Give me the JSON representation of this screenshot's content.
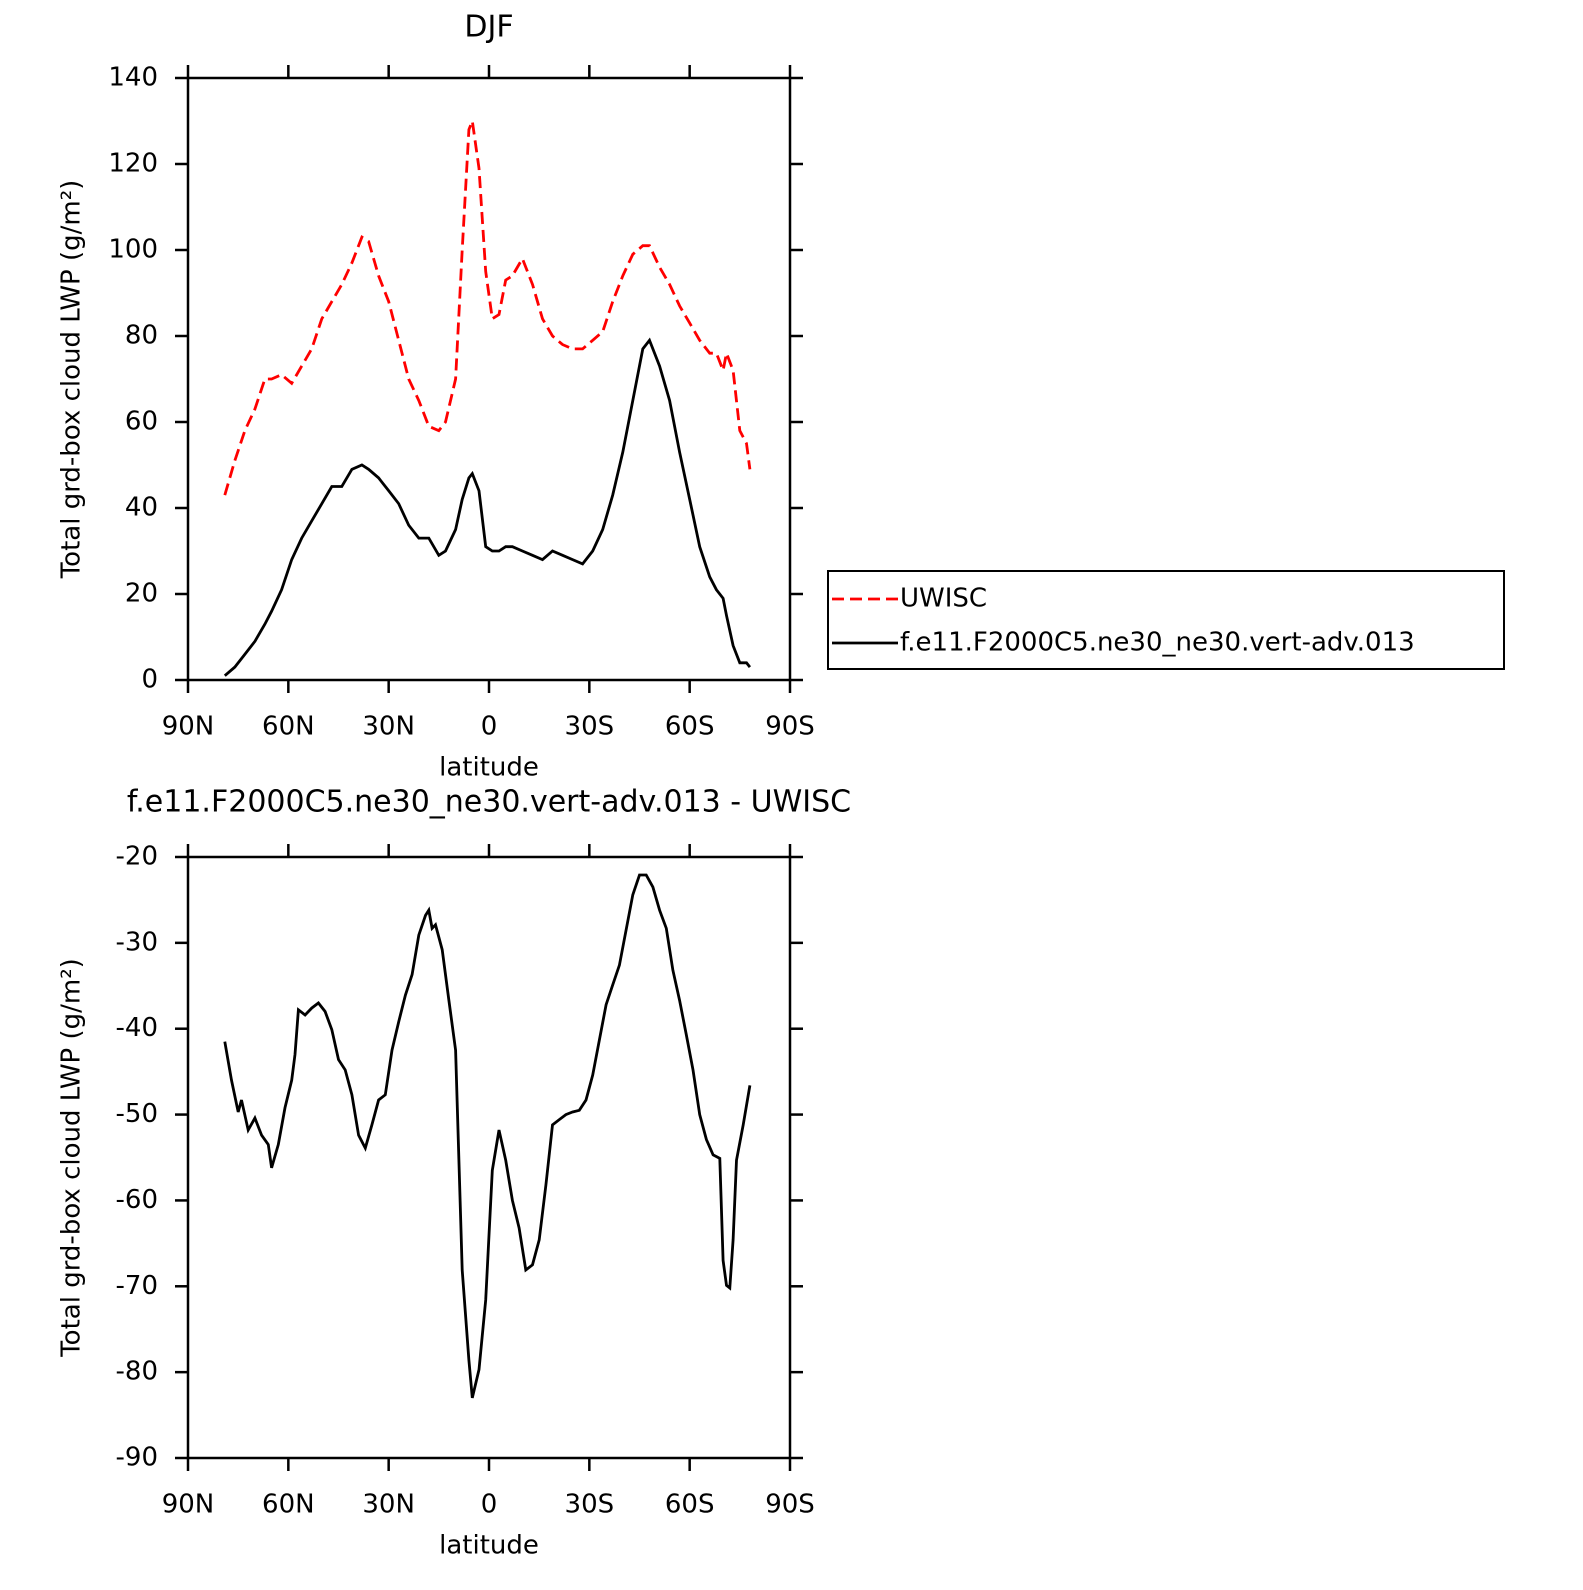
{
  "chart_data": [
    {
      "type": "line",
      "title": "DJF",
      "xlabel": "latitude",
      "ylabel": "Total grd-box cloud LWP (g/m²)",
      "x": [
        79,
        76,
        73,
        70,
        67,
        65,
        62,
        59,
        56,
        53,
        50,
        47,
        44,
        41,
        38,
        36,
        33,
        30,
        27,
        24,
        21,
        18,
        15,
        13,
        10,
        8,
        6,
        5,
        3,
        1,
        -1,
        -3,
        -5,
        -7,
        -10,
        -13,
        -16,
        -19,
        -22,
        -25,
        -28,
        -31,
        -34,
        -37,
        -40,
        -43,
        -46,
        -48,
        -51,
        -54,
        -57,
        -60,
        -63,
        -66,
        -68,
        -70,
        -71,
        -73,
        -75,
        -77,
        -78
      ],
      "series": [
        {
          "name": "UWISC",
          "color": "#ff0000",
          "linestyle": "dashed",
          "values": [
            43,
            51,
            58,
            63,
            70,
            70,
            71,
            69,
            73,
            77,
            84,
            88,
            92,
            97,
            103,
            102,
            94,
            88,
            79,
            70,
            65,
            59,
            58,
            60,
            70,
            100,
            128,
            130,
            119,
            95,
            84,
            85,
            93,
            94,
            98,
            92,
            84,
            80,
            78,
            77,
            77,
            79,
            81,
            88,
            94,
            99,
            101,
            101,
            96,
            92,
            87,
            83,
            79,
            76,
            76,
            72,
            76,
            72,
            58,
            55,
            49
          ]
        },
        {
          "name": "f.e11.F2000C5.ne30_ne30.vert-adv.013",
          "color": "#000000",
          "linestyle": "solid",
          "values": [
            1,
            3,
            6,
            9,
            13,
            16,
            21,
            28,
            33,
            37,
            41,
            45,
            45,
            49,
            50,
            49,
            47,
            44,
            41,
            36,
            33,
            33,
            29,
            30,
            35,
            42,
            47,
            48,
            44,
            31,
            30,
            30,
            31,
            31,
            30,
            29,
            28,
            30,
            29,
            28,
            27,
            30,
            35,
            43,
            53,
            65,
            77,
            79,
            73,
            65,
            53,
            42,
            31,
            24,
            21,
            19,
            15,
            8,
            4,
            4,
            3
          ]
        }
      ],
      "xlim": [
        90,
        -90
      ],
      "xticks": [
        {
          "value": 90,
          "label": "90N"
        },
        {
          "value": 60,
          "label": "60N"
        },
        {
          "value": 30,
          "label": "30N"
        },
        0,
        {
          "value": -30,
          "label": "30S"
        },
        {
          "value": -60,
          "label": "60S"
        },
        {
          "value": -90,
          "label": "90S"
        }
      ],
      "ylim": [
        0,
        140
      ],
      "yticks": [
        0,
        20,
        40,
        60,
        80,
        100,
        120,
        140
      ],
      "legend": "right"
    },
    {
      "type": "line",
      "title": "f.e11.F2000C5.ne30_ne30.vert-adv.013 - UWISC",
      "xlabel": "latitude",
      "ylabel": "Total grd-box cloud LWP (g/m²)",
      "x": [
        79,
        77,
        75,
        74,
        72,
        70,
        68,
        66,
        65,
        63,
        61,
        59,
        58,
        57,
        55,
        53,
        51,
        49,
        47,
        45,
        43,
        41,
        39,
        37,
        35,
        33,
        31,
        29,
        27,
        25,
        23,
        21,
        19,
        18,
        17,
        16,
        14,
        12,
        10,
        8,
        6,
        5,
        3,
        1,
        -1,
        -3,
        -5,
        -7,
        -9,
        -11,
        -13,
        -15,
        -17,
        -19,
        -21,
        -23,
        -25,
        -27,
        -29,
        -31,
        -33,
        -35,
        -37,
        -39,
        -41,
        -43,
        -45,
        -47,
        -49,
        -51,
        -53,
        -55,
        -57,
        -59,
        -61,
        -63,
        -65,
        -67,
        -69,
        -70,
        -71,
        -72,
        -73,
        -74,
        -76,
        -78
      ],
      "series": [
        {
          "name": "f.e11.F2000C5.ne30_ne30.vert-adv.013 - UWISC",
          "color": "#000000",
          "linestyle": "solid",
          "values": [
            -41.5,
            -46,
            -49.7,
            -48.3,
            -51.8,
            -50.4,
            -52.4,
            -53.5,
            -56.2,
            -53.5,
            -49.2,
            -46,
            -43,
            -37.8,
            -38.4,
            -37.6,
            -37,
            -38,
            -40.1,
            -43.6,
            -44.8,
            -47.7,
            -52.4,
            -53.9,
            -51.2,
            -48.3,
            -47.7,
            -42.5,
            -39.2,
            -36.1,
            -33.7,
            -29.1,
            -26.8,
            -26.2,
            -28.3,
            -27.9,
            -30.8,
            -36.7,
            -42.5,
            -68.1,
            -78.6,
            -83,
            -79.7,
            -71.6,
            -56.5,
            -51.8,
            -55.3,
            -60,
            -63.2,
            -68.1,
            -67.5,
            -64.6,
            -58.2,
            -51.2,
            -50.6,
            -50,
            -49.7,
            -49.5,
            -48.3,
            -45.4,
            -41.3,
            -37.2,
            -34.9,
            -32.6,
            -28.5,
            -24.4,
            -22.1,
            -22.1,
            -23.5,
            -26.2,
            -28.3,
            -33.2,
            -36.7,
            -40.7,
            -44.8,
            -50,
            -52.9,
            -54.7,
            -55.1,
            -67,
            -69.9,
            -70.2,
            -64.6,
            -55.3,
            -51.2,
            -46.6
          ]
        }
      ],
      "xlim": [
        90,
        -90
      ],
      "xticks": [
        {
          "value": 90,
          "label": "90N"
        },
        {
          "value": 60,
          "label": "60N"
        },
        {
          "value": 30,
          "label": "30N"
        },
        0,
        {
          "value": -30,
          "label": "30S"
        },
        {
          "value": -60,
          "label": "60S"
        },
        {
          "value": -90,
          "label": "90S"
        }
      ],
      "ylim": [
        -90,
        -20
      ],
      "yticks": [
        -90,
        -80,
        -70,
        -60,
        -50,
        -40,
        -30,
        -20
      ]
    }
  ]
}
